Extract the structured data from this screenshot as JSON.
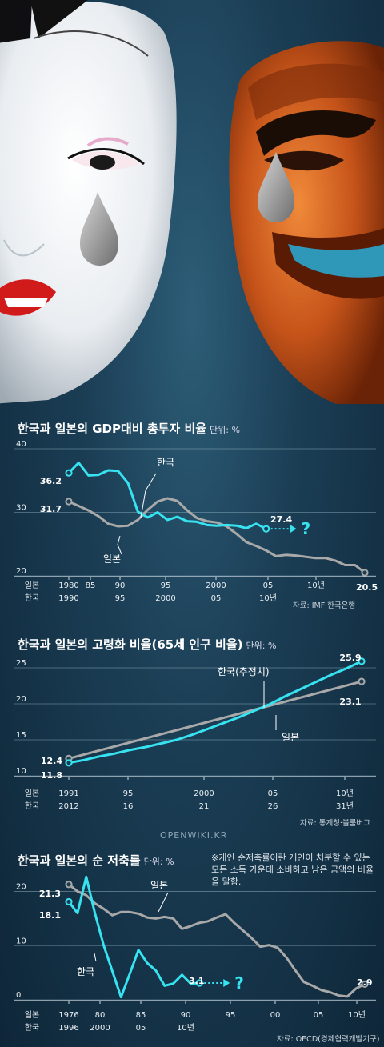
{
  "chart_data": [
    {
      "type": "line",
      "title": "한국과 일본의 GDP대비 총투자 비율",
      "unit": "단위: %",
      "ylim": [
        20,
        40
      ],
      "yticks": [
        20,
        30,
        40
      ],
      "x_rows": [
        {
          "name": "일본",
          "labels": [
            "1980",
            "85",
            "90",
            "95",
            "2000",
            "05",
            "10년"
          ]
        },
        {
          "name": "한국",
          "labels": [
            "1990",
            "95",
            "2000",
            "05",
            "10년",
            "",
            ""
          ]
        }
      ],
      "series": [
        {
          "name": "한국",
          "color": "#37e3f0",
          "x": [
            0,
            1,
            2,
            3,
            4,
            5,
            6,
            7,
            8,
            9,
            10,
            11,
            12,
            13,
            14,
            15,
            16,
            17,
            18,
            19,
            20
          ],
          "values": [
            36.2,
            37.8,
            35.8,
            35.9,
            36.6,
            36.5,
            34.6,
            30.1,
            29.2,
            30.0,
            28.8,
            29.3,
            28.6,
            28.5,
            28.0,
            27.9,
            28.0,
            27.9,
            27.5,
            28.2,
            27.4
          ]
        },
        {
          "name": "일본",
          "color": "#a9a9a9",
          "x": [
            0,
            1,
            2,
            3,
            4,
            5,
            6,
            7,
            8,
            9,
            10,
            11,
            12,
            13,
            14,
            15,
            16,
            17,
            18,
            19,
            20,
            21,
            22,
            23,
            24,
            25,
            26,
            27,
            28,
            29,
            30
          ],
          "values": [
            31.7,
            31.0,
            30.3,
            29.4,
            28.2,
            27.8,
            27.9,
            28.8,
            30.4,
            31.7,
            32.2,
            31.8,
            30.3,
            29.1,
            28.6,
            28.4,
            27.8,
            26.6,
            25.3,
            24.7,
            24.0,
            23.1,
            23.3,
            23.2,
            23.0,
            22.8,
            22.8,
            22.4,
            21.7,
            21.7,
            20.5
          ]
        }
      ],
      "labels": {
        "kr_series": "한국",
        "jp_series": "일본",
        "kr_start": "36.2",
        "jp_start": "31.7",
        "kr_end": "27.4",
        "jp_end": "20.5",
        "question": "?"
      },
      "source": "자료: IMF·한국은행"
    },
    {
      "type": "line",
      "title": "한국과 일본의 고령화 비율(65세 인구 비율)",
      "unit": "단위: %",
      "ylim": [
        10,
        25
      ],
      "yticks": [
        10,
        15,
        20,
        25
      ],
      "x_rows": [
        {
          "name": "일본",
          "labels": [
            "1991",
            "95",
            "2000",
            "05",
            "10년"
          ]
        },
        {
          "name": "한국",
          "labels": [
            "2012",
            "16",
            "21",
            "26",
            "31년"
          ]
        }
      ],
      "series": [
        {
          "name": "한국(추정치)",
          "color": "#37e3f0",
          "x": [
            0,
            1,
            2,
            3,
            4,
            5,
            6,
            7,
            8,
            9,
            10,
            11,
            12,
            13,
            14,
            15,
            16,
            17,
            18,
            19
          ],
          "values": [
            11.8,
            12.2,
            12.7,
            13.1,
            13.6,
            14.0,
            14.5,
            15.0,
            15.7,
            16.5,
            17.3,
            18.1,
            19.0,
            19.9,
            21.0,
            22.0,
            23.0,
            24.0,
            24.9,
            25.9
          ]
        },
        {
          "name": "일본",
          "color": "#a9a9a9",
          "x": [
            0,
            19
          ],
          "values": [
            12.4,
            23.1
          ]
        }
      ],
      "labels": {
        "kr_series": "한국(추정치)",
        "jp_series": "일본",
        "kr_start": "11.8",
        "jp_start": "12.4",
        "kr_end": "25.9",
        "jp_end": "23.1"
      },
      "source": "자료: 통계청·블룸버그"
    },
    {
      "type": "line",
      "title": "한국과 일본의 순 저축률",
      "unit": "단위: %",
      "note": "※개인 순저축률이란 개인이 처분할 수 있는 모든 소득 가운데 소비하고 남은 금액의 비율을 말함.",
      "ylim": [
        0,
        22
      ],
      "yticks": [
        0,
        10,
        20
      ],
      "x_rows": [
        {
          "name": "일본",
          "labels": [
            "1976",
            "80",
            "85",
            "90",
            "95",
            "00",
            "05",
            "10년"
          ]
        },
        {
          "name": "한국",
          "labels": [
            "1996",
            "2000",
            "05",
            "10년",
            "",
            "",
            "",
            ""
          ]
        }
      ],
      "series": [
        {
          "name": "한국",
          "color": "#37e3f0",
          "x": [
            0,
            1,
            2,
            3,
            4,
            5,
            6,
            7,
            8,
            9,
            10,
            11,
            12,
            13,
            14,
            15
          ],
          "values": [
            18.1,
            16.0,
            22.7,
            16.0,
            10.1,
            5.3,
            0.5,
            4.8,
            9.2,
            6.8,
            5.4,
            2.6,
            3.0,
            4.6,
            3.0,
            3.1
          ]
        },
        {
          "name": "일본",
          "color": "#a9a9a9",
          "x": [
            0,
            1,
            2,
            3,
            4,
            5,
            6,
            7,
            8,
            9,
            10,
            11,
            12,
            13,
            14,
            15,
            16,
            17,
            18,
            19,
            20,
            21,
            22,
            23,
            24,
            25,
            26,
            27,
            28,
            29,
            30,
            31,
            32,
            33,
            34
          ],
          "values": [
            21.3,
            20.0,
            19.3,
            17.8,
            16.8,
            15.6,
            16.2,
            16.2,
            15.9,
            15.2,
            15.0,
            15.3,
            15.0,
            13.1,
            13.6,
            14.2,
            14.5,
            15.2,
            15.8,
            14.2,
            12.8,
            11.4,
            9.8,
            10.1,
            9.6,
            7.8,
            5.5,
            3.3,
            2.6,
            1.8,
            1.4,
            0.8,
            0.6,
            2.1,
            2.9
          ]
        }
      ],
      "labels": {
        "kr_series": "한국",
        "jp_series": "일본",
        "kr_start": "18.1",
        "jp_start": "21.3",
        "kr_end": "3.1",
        "jp_end": "2.9",
        "question": "?"
      },
      "source": "자료: OECD(경제협력개발기구)"
    }
  ],
  "watermark": "OPENWIKI.KR"
}
